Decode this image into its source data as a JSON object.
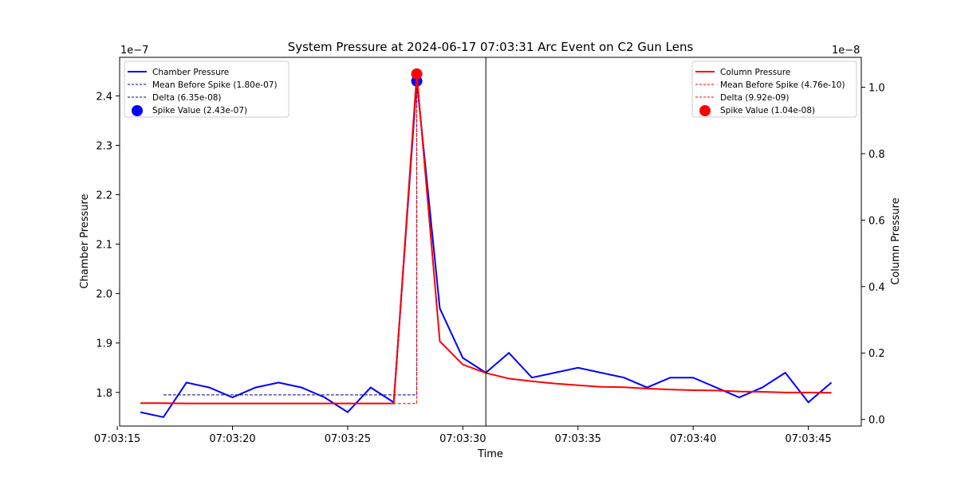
{
  "chart_data": {
    "type": "line",
    "title": "System Pressure at 2024-06-17 07:03:31 Arc Event on C2 Gun Lens",
    "xlabel": "Time",
    "ylabel_left": "Chamber Pressure",
    "ylabel_right": "Column Pressure",
    "left_exponent": "1e−7",
    "right_exponent": "1e−8",
    "x_ticks": [
      "07:03:15",
      "07:03:20",
      "07:03:25",
      "07:03:30",
      "07:03:35",
      "07:03:40",
      "07:03:45"
    ],
    "x_tick_seconds": [
      15,
      20,
      25,
      30,
      35,
      40,
      45
    ],
    "xlim_seconds": [
      15.1,
      47.3
    ],
    "x_seconds": [
      16,
      17,
      18,
      19,
      20,
      21,
      22,
      23,
      24,
      25,
      26,
      27,
      28,
      29,
      30,
      31,
      32,
      33,
      34,
      35,
      36,
      37,
      38,
      39,
      40,
      41,
      42,
      43,
      44,
      45,
      46
    ],
    "left_ylim": [
      1.732,
      2.478
    ],
    "left_ticks": [
      1.8,
      1.9,
      2.0,
      2.1,
      2.2,
      2.3,
      2.4
    ],
    "left_tick_labels": [
      "1.8",
      "1.9",
      "2.0",
      "2.1",
      "2.2",
      "2.3",
      "2.4"
    ],
    "right_ylim": [
      -0.02,
      1.09
    ],
    "right_ticks": [
      0.0,
      0.2,
      0.4,
      0.6,
      0.8,
      1.0
    ],
    "right_tick_labels": [
      "0.0",
      "0.2",
      "0.4",
      "0.6",
      "0.8",
      "1.0"
    ],
    "event_line_seconds": 31,
    "series": [
      {
        "name": "Chamber Pressure",
        "axis": "left",
        "color": "#0000ff",
        "values": [
          1.76,
          1.75,
          1.82,
          1.81,
          1.79,
          1.81,
          1.82,
          1.81,
          1.79,
          1.76,
          1.81,
          1.78,
          2.43,
          1.97,
          1.87,
          1.84,
          1.88,
          1.83,
          1.84,
          1.85,
          1.84,
          1.83,
          1.81,
          1.83,
          1.83,
          1.81,
          1.79,
          1.81,
          1.84,
          1.78,
          1.82
        ],
        "mean_before_spike": 1.795,
        "mean_span_seconds": [
          17,
          28
        ],
        "spike_seconds": 28,
        "spike_value": 2.43
      },
      {
        "name": "Column Pressure",
        "axis": "right",
        "color": "#ff0000",
        "values": [
          0.049,
          0.049,
          0.048,
          0.048,
          0.048,
          0.048,
          0.048,
          0.048,
          0.048,
          0.048,
          0.048,
          0.048,
          1.04,
          0.235,
          0.165,
          0.14,
          0.123,
          0.115,
          0.108,
          0.103,
          0.098,
          0.097,
          0.093,
          0.09,
          0.088,
          0.087,
          0.084,
          0.083,
          0.081,
          0.081,
          0.08
        ],
        "mean_before_spike": 0.0476,
        "mean_span_seconds": [
          17,
          28
        ],
        "spike_seconds": 28,
        "spike_value": 1.04
      }
    ],
    "legend_left": [
      {
        "label": "Chamber Pressure",
        "style": "solid",
        "color": "#0000ff"
      },
      {
        "label": "Mean Before Spike (1.80e-07)",
        "style": "dashed",
        "color": "#00008b"
      },
      {
        "label": "Delta (6.35e-08)",
        "style": "dashed",
        "color": "#00008b"
      },
      {
        "label": "Spike Value (2.43e-07)",
        "style": "marker",
        "color": "#0000ff"
      }
    ],
    "legend_right": [
      {
        "label": "Column Pressure",
        "style": "solid",
        "color": "#ff0000"
      },
      {
        "label": "Mean Before Spike (4.76e-10)",
        "style": "dashed",
        "color": "#ff0000"
      },
      {
        "label": "Delta (9.92e-09)",
        "style": "dashed",
        "color": "#ff0000"
      },
      {
        "label": "Spike Value (1.04e-08)",
        "style": "marker",
        "color": "#ff0000"
      }
    ],
    "legend_placement_left": "upper-left",
    "legend_placement_right": "upper-right",
    "grid": false
  }
}
